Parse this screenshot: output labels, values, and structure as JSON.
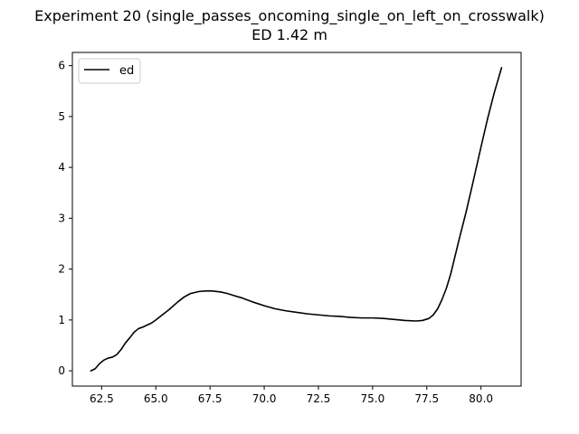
{
  "chart_data": {
    "type": "line",
    "title": "Experiment 20 (single_passes_oncoming_single_on_left_on_crosswalk)",
    "subtitle": "ED 1.42 m",
    "xlabel": "",
    "ylabel": "",
    "xlim": [
      61.15,
      81.85
    ],
    "ylim": [
      -0.3,
      6.26
    ],
    "xticks": [
      62.5,
      65.0,
      67.5,
      70.0,
      72.5,
      75.0,
      77.5,
      80.0
    ],
    "xtick_labels": [
      "62.5",
      "65.0",
      "67.5",
      "70.0",
      "72.5",
      "75.0",
      "77.5",
      "80.0"
    ],
    "yticks": [
      0,
      1,
      2,
      3,
      4,
      5,
      6
    ],
    "ytick_labels": [
      "0",
      "1",
      "2",
      "3",
      "4",
      "5",
      "6"
    ],
    "grid": false,
    "legend": {
      "position": "upper-left"
    },
    "series": [
      {
        "name": "ed",
        "color": "#000000",
        "x": [
          62.0,
          62.2,
          62.4,
          62.6,
          62.8,
          63.0,
          63.2,
          63.4,
          63.6,
          63.8,
          64.0,
          64.2,
          64.4,
          64.6,
          64.8,
          65.0,
          65.3,
          65.6,
          66.0,
          66.3,
          66.6,
          67.0,
          67.3,
          67.6,
          68.0,
          68.3,
          68.6,
          69.0,
          69.5,
          70.0,
          70.5,
          71.0,
          71.5,
          72.0,
          72.5,
          73.0,
          73.5,
          74.0,
          74.5,
          75.0,
          75.5,
          76.0,
          76.5,
          77.0,
          77.3,
          77.6,
          77.8,
          78.0,
          78.2,
          78.4,
          78.6,
          78.8,
          79.0,
          79.3,
          79.6,
          80.0,
          80.3,
          80.6,
          80.95
        ],
        "values": [
          0.0,
          0.04,
          0.14,
          0.21,
          0.25,
          0.27,
          0.32,
          0.42,
          0.55,
          0.65,
          0.76,
          0.83,
          0.86,
          0.9,
          0.94,
          1.0,
          1.1,
          1.2,
          1.35,
          1.45,
          1.52,
          1.56,
          1.57,
          1.57,
          1.55,
          1.52,
          1.48,
          1.43,
          1.35,
          1.28,
          1.22,
          1.18,
          1.15,
          1.12,
          1.1,
          1.08,
          1.07,
          1.05,
          1.04,
          1.04,
          1.03,
          1.01,
          0.99,
          0.98,
          0.99,
          1.03,
          1.1,
          1.22,
          1.4,
          1.62,
          1.9,
          2.25,
          2.6,
          3.1,
          3.65,
          4.4,
          4.95,
          5.45,
          5.96
        ]
      }
    ]
  }
}
